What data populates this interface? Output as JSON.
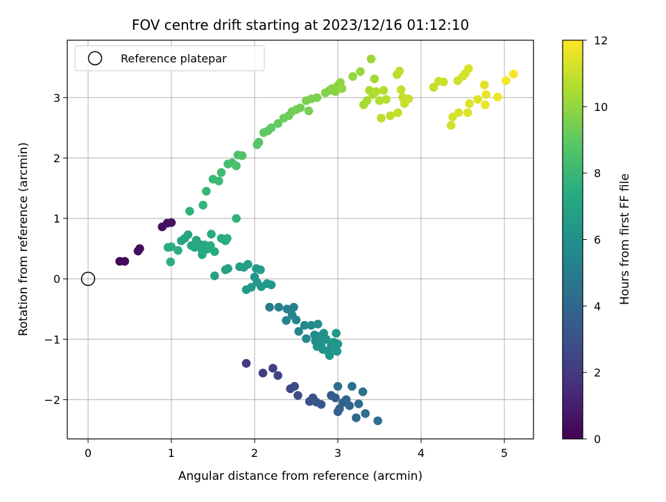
{
  "chart_data": {
    "type": "scatter",
    "title": "FOV centre drift starting at 2023/12/16 01:12:10",
    "xlabel": "Angular distance from reference (arcmin)",
    "ylabel": "Rotation from reference (arcmin)",
    "xlim": [
      -0.25,
      5.35
    ],
    "ylim": [
      -2.65,
      3.95
    ],
    "xticks": [
      0,
      1,
      2,
      3,
      4,
      5
    ],
    "yticks": [
      -2,
      -1,
      0,
      1,
      2,
      3
    ],
    "grid": true,
    "legend": {
      "location": "upper-left",
      "entries": [
        "Reference platepar"
      ]
    },
    "reference_point": {
      "x": 0,
      "y": 0,
      "marker": "open-circle"
    },
    "colorbar": {
      "label": "Hours from first FF file",
      "colormap": "viridis",
      "range": [
        0,
        12
      ],
      "ticks": [
        0,
        2,
        4,
        6,
        8,
        10,
        12
      ]
    },
    "points": [
      {
        "x": 0.38,
        "y": 0.29,
        "c": 0.2
      },
      {
        "x": 0.44,
        "y": 0.29,
        "c": 0.25
      },
      {
        "x": 0.6,
        "y": 0.46,
        "c": 0.35
      },
      {
        "x": 0.62,
        "y": 0.5,
        "c": 0.4
      },
      {
        "x": 0.89,
        "y": 0.86,
        "c": 0.45
      },
      {
        "x": 0.95,
        "y": 0.92,
        "c": 0.5
      },
      {
        "x": 1.0,
        "y": 0.93,
        "c": 0.55
      },
      {
        "x": 1.9,
        "y": -1.4,
        "c": 2.0
      },
      {
        "x": 2.1,
        "y": -1.56,
        "c": 2.2
      },
      {
        "x": 2.22,
        "y": -1.48,
        "c": 2.3
      },
      {
        "x": 2.28,
        "y": -1.6,
        "c": 2.4
      },
      {
        "x": 2.43,
        "y": -1.82,
        "c": 2.6
      },
      {
        "x": 2.48,
        "y": -1.78,
        "c": 2.7
      },
      {
        "x": 2.52,
        "y": -1.93,
        "c": 2.8
      },
      {
        "x": 2.66,
        "y": -2.03,
        "c": 3.0
      },
      {
        "x": 2.7,
        "y": -1.97,
        "c": 3.1
      },
      {
        "x": 2.74,
        "y": -2.04,
        "c": 3.2
      },
      {
        "x": 2.8,
        "y": -2.08,
        "c": 3.3
      },
      {
        "x": 2.92,
        "y": -1.93,
        "c": 3.4
      },
      {
        "x": 2.97,
        "y": -1.97,
        "c": 3.5
      },
      {
        "x": 3.0,
        "y": -2.2,
        "c": 3.6
      },
      {
        "x": 3.02,
        "y": -2.15,
        "c": 3.7
      },
      {
        "x": 3.06,
        "y": -2.05,
        "c": 3.8
      },
      {
        "x": 3.1,
        "y": -2.0,
        "c": 3.9
      },
      {
        "x": 3.14,
        "y": -2.1,
        "c": 4.0
      },
      {
        "x": 3.22,
        "y": -2.3,
        "c": 4.1
      },
      {
        "x": 3.25,
        "y": -2.07,
        "c": 4.2
      },
      {
        "x": 3.33,
        "y": -2.23,
        "c": 4.3
      },
      {
        "x": 3.48,
        "y": -2.35,
        "c": 4.4
      },
      {
        "x": 3.0,
        "y": -1.78,
        "c": 4.3
      },
      {
        "x": 3.17,
        "y": -1.78,
        "c": 4.4
      },
      {
        "x": 3.3,
        "y": -1.87,
        "c": 4.5
      },
      {
        "x": 2.18,
        "y": -0.47,
        "c": 5.0
      },
      {
        "x": 2.29,
        "y": -0.47,
        "c": 5.1
      },
      {
        "x": 2.39,
        "y": -0.5,
        "c": 5.2
      },
      {
        "x": 2.47,
        "y": -0.47,
        "c": 5.2
      },
      {
        "x": 2.38,
        "y": -0.69,
        "c": 5.3
      },
      {
        "x": 2.45,
        "y": -0.6,
        "c": 5.4
      },
      {
        "x": 2.5,
        "y": -0.68,
        "c": 5.5
      },
      {
        "x": 2.53,
        "y": -0.87,
        "c": 5.5
      },
      {
        "x": 2.6,
        "y": -0.77,
        "c": 5.6
      },
      {
        "x": 2.62,
        "y": -0.99,
        "c": 5.6
      },
      {
        "x": 2.68,
        "y": -0.77,
        "c": 5.7
      },
      {
        "x": 2.72,
        "y": -0.93,
        "c": 5.7
      },
      {
        "x": 2.76,
        "y": -0.75,
        "c": 5.8
      },
      {
        "x": 2.73,
        "y": -1.03,
        "c": 5.8
      },
      {
        "x": 2.75,
        "y": -1.12,
        "c": 5.9
      },
      {
        "x": 2.78,
        "y": -0.95,
        "c": 5.9
      },
      {
        "x": 2.8,
        "y": -1.07,
        "c": 6.0
      },
      {
        "x": 2.82,
        "y": -1.17,
        "c": 6.0
      },
      {
        "x": 2.83,
        "y": -0.9,
        "c": 6.1
      },
      {
        "x": 2.86,
        "y": -1.0,
        "c": 6.1
      },
      {
        "x": 2.88,
        "y": -1.2,
        "c": 6.1
      },
      {
        "x": 2.9,
        "y": -1.27,
        "c": 6.2
      },
      {
        "x": 2.92,
        "y": -1.1,
        "c": 6.2
      },
      {
        "x": 2.95,
        "y": -1.05,
        "c": 6.2
      },
      {
        "x": 2.97,
        "y": -1.15,
        "c": 6.3
      },
      {
        "x": 2.99,
        "y": -1.2,
        "c": 6.3
      },
      {
        "x": 3.0,
        "y": -1.08,
        "c": 6.3
      },
      {
        "x": 2.98,
        "y": -0.9,
        "c": 6.3
      },
      {
        "x": 2.0,
        "y": 0.03,
        "c": 6.2
      },
      {
        "x": 2.03,
        "y": -0.06,
        "c": 6.3
      },
      {
        "x": 2.08,
        "y": -0.13,
        "c": 6.3
      },
      {
        "x": 2.15,
        "y": -0.08,
        "c": 6.4
      },
      {
        "x": 2.2,
        "y": -0.1,
        "c": 6.4
      },
      {
        "x": 1.9,
        "y": -0.18,
        "c": 6.4
      },
      {
        "x": 1.96,
        "y": -0.14,
        "c": 6.4
      },
      {
        "x": 2.02,
        "y": 0.17,
        "c": 6.5
      },
      {
        "x": 2.07,
        "y": 0.15,
        "c": 6.5
      },
      {
        "x": 1.82,
        "y": 0.2,
        "c": 6.6
      },
      {
        "x": 1.87,
        "y": 0.19,
        "c": 6.6
      },
      {
        "x": 1.92,
        "y": 0.24,
        "c": 6.7
      },
      {
        "x": 1.65,
        "y": 0.15,
        "c": 6.8
      },
      {
        "x": 1.68,
        "y": 0.17,
        "c": 6.8
      },
      {
        "x": 1.52,
        "y": 0.05,
        "c": 6.9
      },
      {
        "x": 1.16,
        "y": 0.67,
        "c": 7.0
      },
      {
        "x": 1.12,
        "y": 0.63,
        "c": 7.0
      },
      {
        "x": 1.2,
        "y": 0.73,
        "c": 7.0
      },
      {
        "x": 1.24,
        "y": 0.55,
        "c": 7.1
      },
      {
        "x": 1.28,
        "y": 0.52,
        "c": 7.1
      },
      {
        "x": 1.3,
        "y": 0.64,
        "c": 7.1
      },
      {
        "x": 1.34,
        "y": 0.57,
        "c": 7.2
      },
      {
        "x": 1.37,
        "y": 0.47,
        "c": 7.2
      },
      {
        "x": 1.4,
        "y": 0.56,
        "c": 7.2
      },
      {
        "x": 1.43,
        "y": 0.49,
        "c": 7.3
      },
      {
        "x": 1.47,
        "y": 0.55,
        "c": 7.3
      },
      {
        "x": 1.52,
        "y": 0.45,
        "c": 7.3
      },
      {
        "x": 1.48,
        "y": 0.74,
        "c": 7.3
      },
      {
        "x": 1.6,
        "y": 0.67,
        "c": 7.4
      },
      {
        "x": 1.65,
        "y": 0.63,
        "c": 7.4
      },
      {
        "x": 1.67,
        "y": 0.67,
        "c": 7.5
      },
      {
        "x": 1.37,
        "y": 0.4,
        "c": 7.2
      },
      {
        "x": 0.96,
        "y": 0.52,
        "c": 7.5
      },
      {
        "x": 1.0,
        "y": 0.53,
        "c": 7.5
      },
      {
        "x": 1.08,
        "y": 0.47,
        "c": 7.6
      },
      {
        "x": 0.99,
        "y": 0.28,
        "c": 7.6
      },
      {
        "x": 1.78,
        "y": 1.0,
        "c": 7.7
      },
      {
        "x": 1.22,
        "y": 1.12,
        "c": 7.7
      },
      {
        "x": 1.38,
        "y": 1.22,
        "c": 7.8
      },
      {
        "x": 1.42,
        "y": 1.45,
        "c": 7.9
      },
      {
        "x": 1.5,
        "y": 1.65,
        "c": 8.0
      },
      {
        "x": 1.57,
        "y": 1.62,
        "c": 8.1
      },
      {
        "x": 1.6,
        "y": 1.76,
        "c": 8.2
      },
      {
        "x": 1.68,
        "y": 1.9,
        "c": 8.3
      },
      {
        "x": 1.73,
        "y": 1.92,
        "c": 8.4
      },
      {
        "x": 1.78,
        "y": 1.87,
        "c": 8.5
      },
      {
        "x": 1.8,
        "y": 2.05,
        "c": 8.5
      },
      {
        "x": 1.85,
        "y": 2.04,
        "c": 8.6
      },
      {
        "x": 2.03,
        "y": 2.22,
        "c": 8.8
      },
      {
        "x": 2.05,
        "y": 2.26,
        "c": 8.8
      },
      {
        "x": 2.11,
        "y": 2.42,
        "c": 8.9
      },
      {
        "x": 2.16,
        "y": 2.45,
        "c": 9.0
      },
      {
        "x": 2.2,
        "y": 2.5,
        "c": 9.0
      },
      {
        "x": 2.28,
        "y": 2.57,
        "c": 9.1
      },
      {
        "x": 2.35,
        "y": 2.66,
        "c": 9.2
      },
      {
        "x": 2.41,
        "y": 2.7,
        "c": 9.3
      },
      {
        "x": 2.45,
        "y": 2.77,
        "c": 9.3
      },
      {
        "x": 2.5,
        "y": 2.8,
        "c": 9.4
      },
      {
        "x": 2.55,
        "y": 2.83,
        "c": 9.4
      },
      {
        "x": 2.62,
        "y": 2.95,
        "c": 9.5
      },
      {
        "x": 2.65,
        "y": 2.78,
        "c": 9.5
      },
      {
        "x": 2.68,
        "y": 2.98,
        "c": 9.6
      },
      {
        "x": 2.75,
        "y": 3.0,
        "c": 9.6
      },
      {
        "x": 2.85,
        "y": 3.08,
        "c": 9.7
      },
      {
        "x": 2.9,
        "y": 3.12,
        "c": 9.7
      },
      {
        "x": 2.93,
        "y": 3.15,
        "c": 9.8
      },
      {
        "x": 2.97,
        "y": 3.1,
        "c": 9.8
      },
      {
        "x": 3.0,
        "y": 3.2,
        "c": 9.9
      },
      {
        "x": 3.03,
        "y": 3.25,
        "c": 9.9
      },
      {
        "x": 3.05,
        "y": 3.15,
        "c": 10.0
      },
      {
        "x": 3.18,
        "y": 3.35,
        "c": 10.0
      },
      {
        "x": 3.27,
        "y": 3.43,
        "c": 10.1
      },
      {
        "x": 3.4,
        "y": 3.64,
        "c": 10.2
      },
      {
        "x": 3.44,
        "y": 3.31,
        "c": 10.3
      },
      {
        "x": 3.35,
        "y": 2.95,
        "c": 10.4
      },
      {
        "x": 3.31,
        "y": 2.88,
        "c": 10.4
      },
      {
        "x": 3.38,
        "y": 3.12,
        "c": 10.5
      },
      {
        "x": 3.42,
        "y": 3.05,
        "c": 10.5
      },
      {
        "x": 3.46,
        "y": 3.1,
        "c": 10.6
      },
      {
        "x": 3.5,
        "y": 2.95,
        "c": 10.6
      },
      {
        "x": 3.55,
        "y": 3.12,
        "c": 10.6
      },
      {
        "x": 3.58,
        "y": 2.97,
        "c": 10.7
      },
      {
        "x": 3.52,
        "y": 2.66,
        "c": 10.8
      },
      {
        "x": 3.63,
        "y": 2.7,
        "c": 10.8
      },
      {
        "x": 3.72,
        "y": 2.75,
        "c": 10.9
      },
      {
        "x": 3.71,
        "y": 3.38,
        "c": 10.7
      },
      {
        "x": 3.74,
        "y": 3.44,
        "c": 10.8
      },
      {
        "x": 3.76,
        "y": 3.13,
        "c": 10.9
      },
      {
        "x": 3.78,
        "y": 3.0,
        "c": 10.9
      },
      {
        "x": 3.8,
        "y": 2.9,
        "c": 11.0
      },
      {
        "x": 3.85,
        "y": 2.98,
        "c": 11.0
      },
      {
        "x": 4.15,
        "y": 3.17,
        "c": 10.9
      },
      {
        "x": 4.21,
        "y": 3.27,
        "c": 11.0
      },
      {
        "x": 4.27,
        "y": 3.26,
        "c": 11.0
      },
      {
        "x": 4.36,
        "y": 2.54,
        "c": 11.2
      },
      {
        "x": 4.38,
        "y": 2.68,
        "c": 11.2
      },
      {
        "x": 4.45,
        "y": 2.75,
        "c": 11.3
      },
      {
        "x": 4.44,
        "y": 3.28,
        "c": 11.1
      },
      {
        "x": 4.5,
        "y": 3.35,
        "c": 11.2
      },
      {
        "x": 4.53,
        "y": 3.4,
        "c": 11.3
      },
      {
        "x": 4.57,
        "y": 3.48,
        "c": 11.3
      },
      {
        "x": 4.56,
        "y": 2.75,
        "c": 11.4
      },
      {
        "x": 4.58,
        "y": 2.9,
        "c": 11.4
      },
      {
        "x": 4.68,
        "y": 2.97,
        "c": 11.5
      },
      {
        "x": 4.76,
        "y": 3.21,
        "c": 11.5
      },
      {
        "x": 4.78,
        "y": 3.05,
        "c": 11.6
      },
      {
        "x": 4.77,
        "y": 2.88,
        "c": 11.6
      },
      {
        "x": 4.92,
        "y": 3.01,
        "c": 11.7
      },
      {
        "x": 5.02,
        "y": 3.28,
        "c": 11.8
      },
      {
        "x": 5.11,
        "y": 3.39,
        "c": 11.9
      }
    ]
  }
}
